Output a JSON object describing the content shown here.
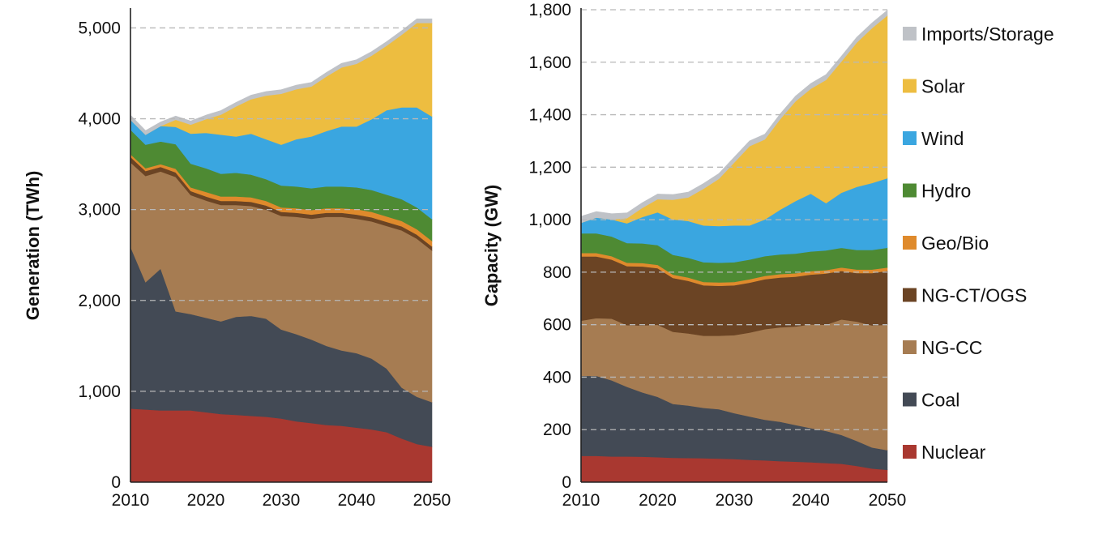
{
  "chart_data": [
    {
      "type": "area",
      "stacked": true,
      "ylabel": "Generation (TWh)",
      "xlabel": "",
      "xlim": [
        2010,
        2050
      ],
      "ylim": [
        0,
        5200
      ],
      "x_ticks": [
        "2010",
        "2020",
        "2030",
        "2040",
        "2050"
      ],
      "y_ticks": [
        "0",
        "1,000",
        "2,000",
        "3,000",
        "4,000",
        "5,000"
      ],
      "x": [
        2010,
        2012,
        2014,
        2016,
        2018,
        2020,
        2022,
        2024,
        2026,
        2028,
        2030,
        2032,
        2034,
        2036,
        2038,
        2040,
        2042,
        2044,
        2046,
        2048,
        2050
      ],
      "series": [
        {
          "name": "Nuclear",
          "values": [
            810,
            800,
            790,
            790,
            790,
            770,
            750,
            740,
            730,
            720,
            700,
            670,
            650,
            630,
            620,
            600,
            580,
            550,
            480,
            420,
            390
          ]
        },
        {
          "name": "Coal",
          "values": [
            1780,
            1400,
            1560,
            1090,
            1060,
            1040,
            1020,
            1080,
            1100,
            1080,
            980,
            960,
            920,
            870,
            830,
            820,
            780,
            700,
            560,
            520,
            490
          ]
        },
        {
          "name": "NG-CC",
          "values": [
            930,
            1170,
            1070,
            1480,
            1310,
            1290,
            1280,
            1230,
            1210,
            1200,
            1250,
            1290,
            1330,
            1420,
            1470,
            1480,
            1510,
            1570,
            1730,
            1740,
            1670
          ]
        },
        {
          "name": "NG-CT/OGS",
          "values": [
            60,
            55,
            50,
            50,
            45,
            45,
            45,
            45,
            45,
            45,
            45,
            45,
            45,
            45,
            45,
            45,
            45,
            45,
            45,
            45,
            45
          ]
        },
        {
          "name": "Geo/Bio",
          "values": [
            30,
            30,
            30,
            40,
            40,
            50,
            50,
            50,
            50,
            50,
            50,
            50,
            50,
            50,
            50,
            60,
            60,
            60,
            60,
            60,
            60
          ]
        },
        {
          "name": "Hydro",
          "values": [
            270,
            260,
            250,
            270,
            260,
            260,
            250,
            260,
            250,
            240,
            240,
            240,
            240,
            240,
            240,
            240,
            240,
            240,
            240,
            240,
            240
          ]
        },
        {
          "name": "Wind",
          "values": [
            110,
            110,
            170,
            190,
            330,
            390,
            430,
            400,
            450,
            440,
            450,
            520,
            570,
            610,
            660,
            670,
            780,
            930,
            1010,
            1100,
            1130
          ]
        },
        {
          "name": "Solar",
          "values": [
            0,
            0,
            0,
            80,
            100,
            150,
            220,
            330,
            380,
            480,
            560,
            550,
            550,
            600,
            650,
            690,
            700,
            710,
            800,
            930,
            1030
          ]
        },
        {
          "name": "Imports/Storage",
          "values": [
            50,
            45,
            45,
            40,
            40,
            45,
            45,
            45,
            45,
            45,
            45,
            45,
            45,
            45,
            45,
            45,
            45,
            45,
            45,
            45,
            45
          ]
        }
      ]
    },
    {
      "type": "area",
      "stacked": true,
      "ylabel": "Capacity (GW)",
      "xlabel": "",
      "xlim": [
        2010,
        2050
      ],
      "ylim": [
        0,
        1800
      ],
      "x_ticks": [
        "2010",
        "2020",
        "2030",
        "2040",
        "2050"
      ],
      "y_ticks": [
        "0",
        "200",
        "400",
        "600",
        "800",
        "1,000",
        "1,200",
        "1,400",
        "1,600",
        "1,800"
      ],
      "x": [
        2010,
        2012,
        2014,
        2016,
        2018,
        2020,
        2022,
        2024,
        2026,
        2028,
        2030,
        2032,
        2034,
        2036,
        2038,
        2040,
        2042,
        2044,
        2046,
        2048,
        2050
      ],
      "series": [
        {
          "name": "Nuclear",
          "values": [
            100,
            100,
            98,
            98,
            97,
            95,
            93,
            92,
            91,
            90,
            88,
            85,
            83,
            80,
            78,
            76,
            73,
            70,
            62,
            52,
            47
          ]
        },
        {
          "name": "Coal",
          "values": [
            305,
            305,
            290,
            265,
            245,
            230,
            205,
            200,
            192,
            188,
            175,
            165,
            155,
            150,
            140,
            130,
            122,
            110,
            95,
            80,
            75
          ]
        },
        {
          "name": "NG-CC",
          "values": [
            210,
            220,
            235,
            235,
            255,
            275,
            275,
            275,
            275,
            280,
            297,
            320,
            345,
            360,
            375,
            395,
            405,
            440,
            455,
            465,
            478
          ]
        },
        {
          "name": "NG-CT/OGS",
          "values": [
            245,
            235,
            225,
            225,
            225,
            215,
            205,
            200,
            192,
            190,
            190,
            190,
            190,
            190,
            190,
            190,
            195,
            185,
            185,
            200,
            205
          ]
        },
        {
          "name": "Geo/Bio",
          "values": [
            13,
            13,
            13,
            13,
            13,
            13,
            13,
            13,
            13,
            13,
            13,
            13,
            13,
            13,
            13,
            13,
            13,
            13,
            13,
            13,
            13
          ]
        },
        {
          "name": "Hydro",
          "values": [
            75,
            75,
            75,
            75,
            75,
            75,
            75,
            75,
            75,
            75,
            75,
            75,
            75,
            75,
            75,
            75,
            75,
            75,
            75,
            75,
            75
          ]
        },
        {
          "name": "Wind",
          "values": [
            40,
            60,
            65,
            75,
            100,
            125,
            135,
            140,
            140,
            140,
            140,
            130,
            140,
            170,
            200,
            220,
            180,
            210,
            240,
            255,
            265
          ]
        },
        {
          "name": "Solar",
          "values": [
            0,
            0,
            0,
            20,
            35,
            50,
            75,
            90,
            140,
            180,
            240,
            302,
            305,
            345,
            380,
            400,
            470,
            500,
            550,
            590,
            620
          ]
        },
        {
          "name": "Imports/Storage",
          "values": [
            25,
            23,
            22,
            20,
            20,
            20,
            20,
            20,
            20,
            20,
            20,
            20,
            20,
            20,
            20,
            20,
            20,
            20,
            20,
            20,
            20
          ]
        }
      ]
    }
  ],
  "legend": {
    "items": [
      {
        "label": "Imports/Storage",
        "color": "#bfc2c7"
      },
      {
        "label": "Solar",
        "color": "#edbd40"
      },
      {
        "label": "Wind",
        "color": "#3aa6e0"
      },
      {
        "label": "Hydro",
        "color": "#4e8a33"
      },
      {
        "label": "Geo/Bio",
        "color": "#df8a2c"
      },
      {
        "label": "NG-CT/OGS",
        "color": "#6b4424"
      },
      {
        "label": "NG-CC",
        "color": "#a67c52"
      },
      {
        "label": "Coal",
        "color": "#434a55"
      },
      {
        "label": "Nuclear",
        "color": "#a93830"
      }
    ]
  },
  "colors": {
    "Nuclear": "#a93830",
    "Coal": "#434a55",
    "NG-CC": "#a67c52",
    "NG-CT/OGS": "#6b4424",
    "Geo/Bio": "#df8a2c",
    "Hydro": "#4e8a33",
    "Wind": "#3aa6e0",
    "Solar": "#edbd40",
    "Imports/Storage": "#bfc2c7"
  }
}
